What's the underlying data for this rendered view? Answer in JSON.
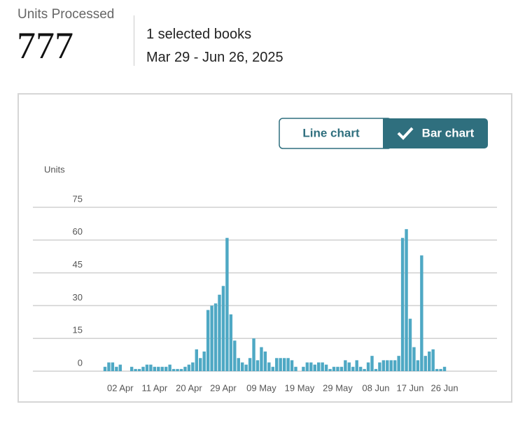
{
  "header": {
    "metric_label": "Units Processed",
    "metric_value": 777,
    "selection": "1 selected books",
    "date_range": "Mar 29 - Jun 26, 2025"
  },
  "buttons": [
    "Line chart",
    "Bar chart"
  ],
  "chart_data": {
    "type": "bar",
    "y_label": "Units",
    "color": "#4ea8c4",
    "grid": true,
    "ylim": [
      0,
      75
    ],
    "yticks": [
      0,
      15,
      30,
      45,
      60,
      75
    ],
    "categories": [
      null,
      null,
      null,
      null,
      "02 Apr",
      null,
      null,
      null,
      null,
      null,
      null,
      null,
      null,
      "11 Apr",
      null,
      null,
      null,
      null,
      null,
      null,
      null,
      null,
      "20 Apr",
      null,
      null,
      null,
      null,
      null,
      null,
      null,
      null,
      "29 Apr",
      null,
      null,
      null,
      null,
      null,
      null,
      null,
      null,
      null,
      "09 May",
      null,
      null,
      null,
      null,
      null,
      null,
      null,
      null,
      null,
      "19 May",
      null,
      null,
      null,
      null,
      null,
      null,
      null,
      null,
      null,
      "29 May",
      null,
      null,
      null,
      null,
      null,
      null,
      null,
      null,
      null,
      "08 Jun",
      null,
      null,
      null,
      null,
      null,
      null,
      null,
      null,
      "17 Jun",
      null,
      null,
      null,
      null,
      null,
      null,
      null,
      null,
      "26 Jun"
    ],
    "values": [
      2,
      4,
      4,
      2,
      3,
      0,
      0,
      2,
      1,
      1,
      2,
      3,
      3,
      2,
      2,
      2,
      2,
      3,
      1,
      1,
      1,
      2,
      3,
      4,
      10,
      6,
      9,
      28,
      30,
      31,
      35,
      39,
      61,
      26,
      14,
      6,
      4,
      3,
      6,
      15,
      5,
      11,
      9,
      4,
      2,
      6,
      6,
      6,
      6,
      5,
      2,
      0,
      2,
      4,
      4,
      3,
      4,
      4,
      3,
      1,
      2,
      2,
      2,
      5,
      4,
      2,
      5,
      2,
      1,
      4,
      7,
      1,
      4,
      5,
      5,
      5,
      5,
      7,
      61,
      65,
      24,
      11,
      5,
      53,
      7,
      9,
      10,
      1,
      1,
      2
    ]
  }
}
